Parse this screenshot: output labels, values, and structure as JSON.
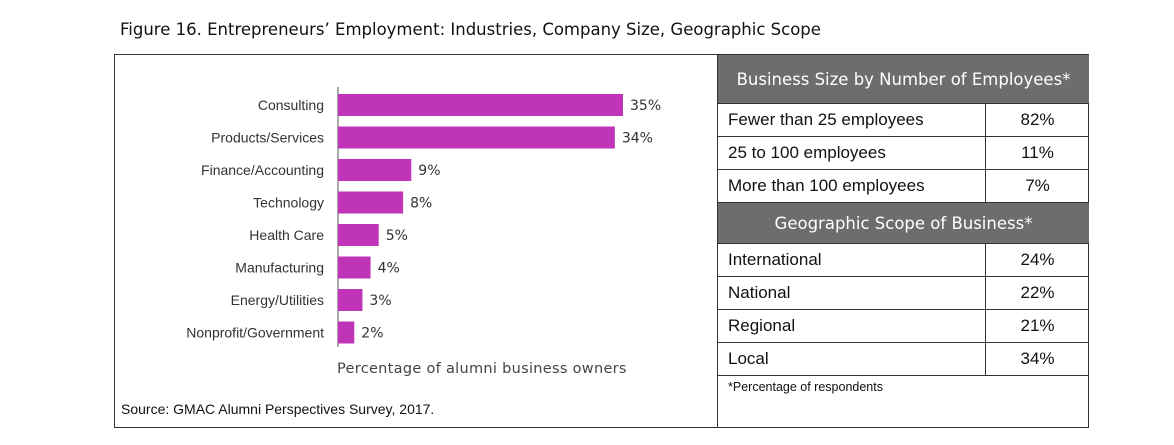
{
  "title": "Figure 16. Entrepreneurs’ Employment: Industries, Company Size, Geographic Scope",
  "source": "Source: GMAC Alumni Perspectives Survey, 2017.",
  "chart_data": {
    "type": "bar",
    "orientation": "horizontal",
    "categories": [
      "Consulting",
      "Products/Services",
      "Finance/Accounting",
      "Technology",
      "Health Care",
      "Manufacturing",
      "Energy/Utilities",
      "Nonprofit/Government"
    ],
    "values": [
      35,
      34,
      9,
      8,
      5,
      4,
      3,
      2
    ],
    "data_labels": [
      "35%",
      "34%",
      "9%",
      "8%",
      "5%",
      "4%",
      "3%",
      "2%"
    ],
    "xlabel": "Percentage of alumni business owners",
    "bar_color": "#c035b8",
    "grid": false
  },
  "tables": {
    "size_header": "Business Size by Number of Employees*",
    "size_rows": [
      {
        "label": "Fewer than 25 employees",
        "value": "82%"
      },
      {
        "label": "25 to 100 employees",
        "value": "11%"
      },
      {
        "label": "More than 100 employees",
        "value": "7%"
      }
    ],
    "scope_header": "Geographic Scope of Business*",
    "scope_rows": [
      {
        "label": "International",
        "value": "24%"
      },
      {
        "label": "National",
        "value": "22%"
      },
      {
        "label": "Regional",
        "value": "21%"
      },
      {
        "label": "Local",
        "value": "34%"
      }
    ],
    "footnote": "*Percentage of respondents"
  }
}
